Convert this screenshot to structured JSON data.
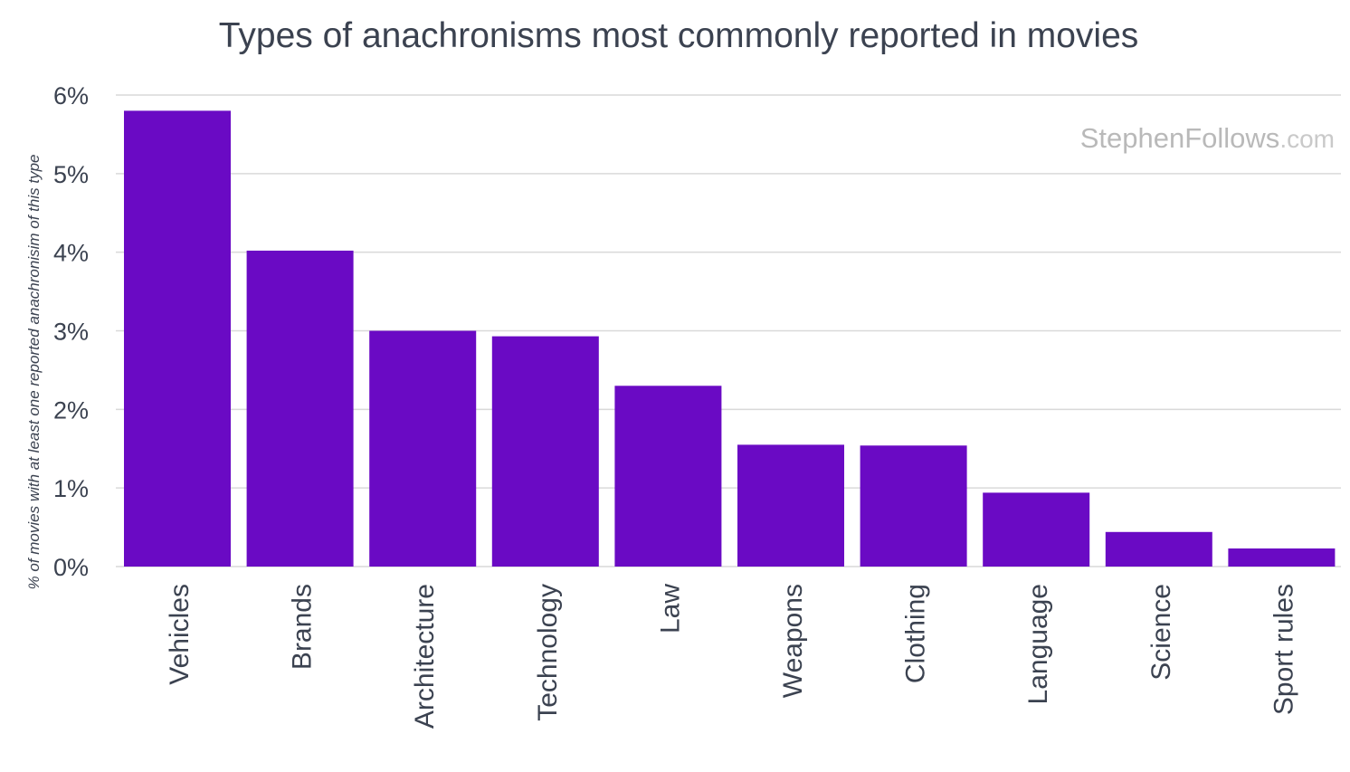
{
  "watermark": {
    "brand": "StephenFollows",
    "suffix": ".com"
  },
  "colors": {
    "bar": "#6a0ac4",
    "text": "#3b4250",
    "grid": "#d9d9d9",
    "watermark_brand": "#b9b9b9",
    "watermark_suffix": "#c9c9c9"
  },
  "chart_data": {
    "type": "bar",
    "title": "Types of anachronisms most commonly reported in movies",
    "xlabel": "",
    "ylabel": "% of movies with at least one reported anachronisim of this type",
    "categories": [
      "Vehicles",
      "Brands",
      "Architecture",
      "Technology",
      "Law",
      "Weapons",
      "Clothing",
      "Language",
      "Science",
      "Sport rules"
    ],
    "values": [
      5.8,
      4.02,
      3.0,
      2.93,
      2.3,
      1.55,
      1.54,
      0.94,
      0.44,
      0.23
    ],
    "value_unit": "%",
    "ylim": [
      0,
      6
    ],
    "yticks": [
      0,
      1,
      2,
      3,
      4,
      5,
      6
    ],
    "ytick_labels": [
      "0%",
      "1%",
      "2%",
      "3%",
      "4%",
      "5%",
      "6%"
    ],
    "grid": true,
    "legend": "none"
  }
}
